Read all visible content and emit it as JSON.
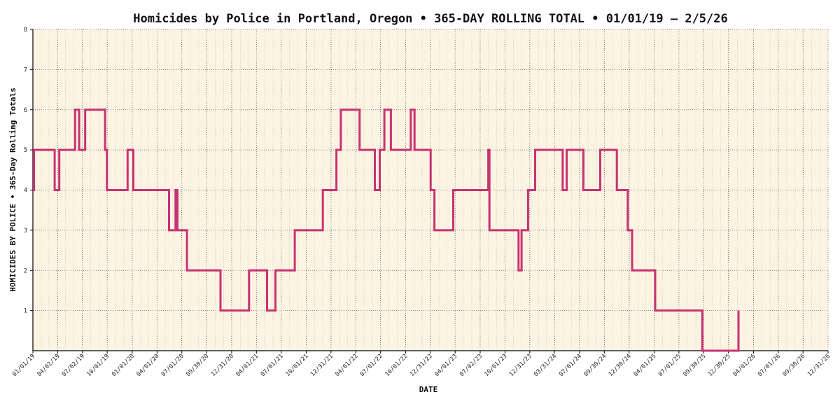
{
  "chart_data": {
    "type": "line",
    "title": "Homicides by Police in Portland, Oregon • 365-DAY ROLLING TOTAL • 01/01/19 – 2/5/26",
    "xlabel": "DATE",
    "ylabel": "HOMICIDES BY POLICE • 365-Day Rolling Totals",
    "ylim": [
      0,
      8
    ],
    "y_ticks": [
      1,
      2,
      3,
      4,
      5,
      6,
      7,
      8
    ],
    "xlim": [
      "2019-01-01",
      "2026-12-31"
    ],
    "x_ticks": [
      {
        "date": "2019-01-01",
        "label": "01/01/19"
      },
      {
        "date": "2019-04-02",
        "label": "04/02/19"
      },
      {
        "date": "2019-07-02",
        "label": "07/02/19"
      },
      {
        "date": "2019-10-01",
        "label": "10/01/19"
      },
      {
        "date": "2020-01-01",
        "label": "01/01/20"
      },
      {
        "date": "2020-04-01",
        "label": "04/01/20"
      },
      {
        "date": "2020-07-01",
        "label": "07/01/20"
      },
      {
        "date": "2020-09-30",
        "label": "09/30/20"
      },
      {
        "date": "2020-12-31",
        "label": "12/31/20"
      },
      {
        "date": "2021-04-01",
        "label": "04/01/21"
      },
      {
        "date": "2021-07-01",
        "label": "07/01/21"
      },
      {
        "date": "2021-10-01",
        "label": "10/01/21"
      },
      {
        "date": "2021-12-31",
        "label": "12/31/21"
      },
      {
        "date": "2022-04-01",
        "label": "04/01/22"
      },
      {
        "date": "2022-07-01",
        "label": "07/01/22"
      },
      {
        "date": "2022-10-01",
        "label": "10/01/22"
      },
      {
        "date": "2022-12-31",
        "label": "12/31/22"
      },
      {
        "date": "2023-04-01",
        "label": "04/01/23"
      },
      {
        "date": "2023-07-02",
        "label": "07/02/23"
      },
      {
        "date": "2023-10-01",
        "label": "10/01/23"
      },
      {
        "date": "2023-12-31",
        "label": "12/31/23"
      },
      {
        "date": "2024-03-31",
        "label": "03/31/24"
      },
      {
        "date": "2024-07-01",
        "label": "07/01/24"
      },
      {
        "date": "2024-09-30",
        "label": "09/30/24"
      },
      {
        "date": "2024-12-30",
        "label": "12/30/24"
      },
      {
        "date": "2025-04-01",
        "label": "04/01/25"
      },
      {
        "date": "2025-07-01",
        "label": "07/01/25"
      },
      {
        "date": "2025-09-30",
        "label": "09/30/25"
      },
      {
        "date": "2025-12-30",
        "label": "12/30/25"
      },
      {
        "date": "2026-04-01",
        "label": "04/01/26"
      },
      {
        "date": "2026-07-01",
        "label": "07/01/26"
      },
      {
        "date": "2026-09-30",
        "label": "09/30/26"
      },
      {
        "date": "2026-12-31",
        "label": "12/31/26"
      }
    ],
    "grid": true,
    "colors": {
      "line": "#c73370",
      "plot_background": "#fdf3e3",
      "grid": "#999999"
    },
    "series": [
      {
        "step": true,
        "points": [
          [
            "2019-01-01",
            4
          ],
          [
            "2019-01-05",
            5
          ],
          [
            "2019-03-22",
            4
          ],
          [
            "2019-04-08",
            5
          ],
          [
            "2019-06-05",
            6
          ],
          [
            "2019-06-20",
            5
          ],
          [
            "2019-07-12",
            6
          ],
          [
            "2019-09-23",
            5
          ],
          [
            "2019-09-30",
            4
          ],
          [
            "2019-12-15",
            5
          ],
          [
            "2020-01-05",
            4
          ],
          [
            "2020-05-15",
            3
          ],
          [
            "2020-06-08",
            4
          ],
          [
            "2020-06-15",
            3
          ],
          [
            "2020-07-20",
            2
          ],
          [
            "2020-11-20",
            1
          ],
          [
            "2021-03-05",
            2
          ],
          [
            "2021-05-10",
            1
          ],
          [
            "2021-06-10",
            2
          ],
          [
            "2021-08-20",
            3
          ],
          [
            "2021-12-01",
            4
          ],
          [
            "2022-01-20",
            5
          ],
          [
            "2022-02-05",
            6
          ],
          [
            "2022-04-15",
            5
          ],
          [
            "2022-06-10",
            4
          ],
          [
            "2022-06-28",
            5
          ],
          [
            "2022-07-15",
            6
          ],
          [
            "2022-08-08",
            5
          ],
          [
            "2022-10-20",
            6
          ],
          [
            "2022-11-03",
            5
          ],
          [
            "2023-01-01",
            4
          ],
          [
            "2023-01-15",
            3
          ],
          [
            "2023-03-25",
            4
          ],
          [
            "2023-08-01",
            5
          ],
          [
            "2023-08-05",
            3
          ],
          [
            "2023-11-20",
            2
          ],
          [
            "2023-12-01",
            3
          ],
          [
            "2023-12-25",
            4
          ],
          [
            "2024-01-20",
            5
          ],
          [
            "2024-04-30",
            4
          ],
          [
            "2024-05-15",
            5
          ],
          [
            "2024-07-15",
            4
          ],
          [
            "2024-09-15",
            5
          ],
          [
            "2024-11-15",
            4
          ],
          [
            "2024-12-25",
            3
          ],
          [
            "2025-01-10",
            2
          ],
          [
            "2025-04-05",
            1
          ],
          [
            "2025-09-25",
            0
          ],
          [
            "2026-02-05",
            1
          ]
        ]
      }
    ]
  }
}
